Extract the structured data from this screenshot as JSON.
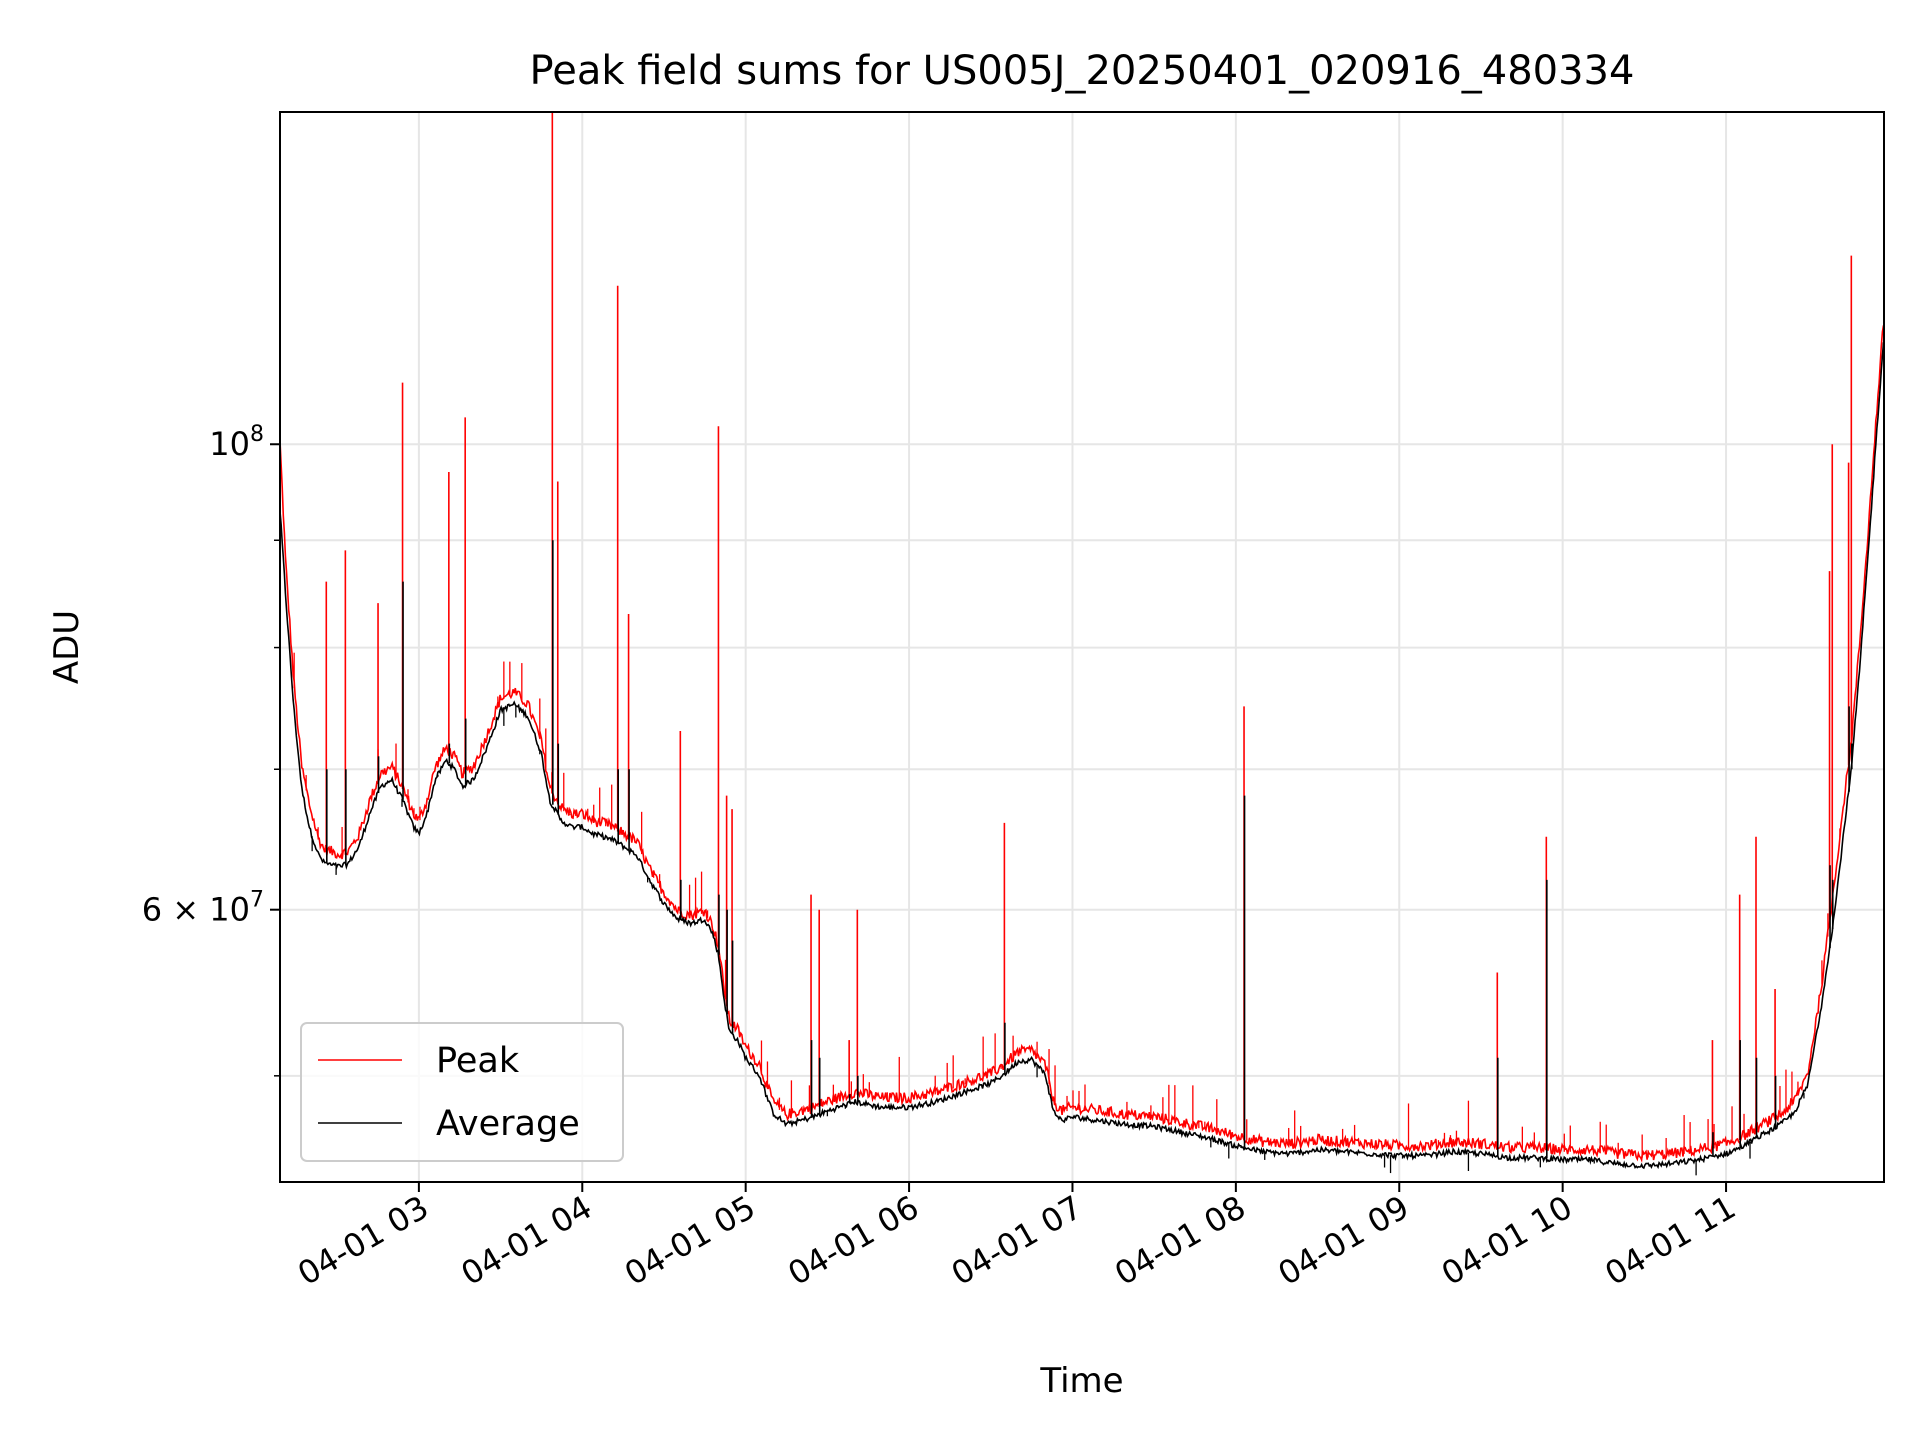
{
  "chart_data": {
    "type": "line",
    "title": "Peak field sums for US005J_20250401_020916_480334",
    "xlabel": "Time",
    "ylabel": "ADU",
    "y_scale": "log",
    "xlim": [
      "2025-04-01T02:09",
      "2025-04-01T11:58"
    ],
    "ylim": [
      44500000,
      144000000
    ],
    "grid": true,
    "legend_position": "lower-left",
    "x_ticks": [
      "04-01 03",
      "04-01 04",
      "04-01 05",
      "04-01 06",
      "04-01 07",
      "04-01 08",
      "04-01 09",
      "04-01 10",
      "04-01 11"
    ],
    "y_ticks": [
      "10^8",
      "6 × 10^7"
    ],
    "series_colors": {
      "Peak": "#ff0000",
      "Average": "#000000"
    },
    "series": [
      {
        "name": "Peak",
        "x": [
          "02:09",
          "02:11",
          "02:14",
          "02:17",
          "02:20",
          "02:23",
          "02:25",
          "02:28",
          "02:31",
          "02:34",
          "02:38",
          "02:42",
          "02:46",
          "02:50",
          "02:54",
          "02:58",
          "03:00",
          "03:03",
          "03:06",
          "03:10",
          "03:13",
          "03:16",
          "03:20",
          "03:25",
          "03:30",
          "03:35",
          "03:40",
          "03:45",
          "03:48",
          "03:52",
          "03:56",
          "04:00",
          "04:04",
          "04:08",
          "04:12",
          "04:16",
          "04:20",
          "04:25",
          "04:30",
          "04:35",
          "04:40",
          "04:45",
          "04:48",
          "04:50",
          "04:52",
          "04:54",
          "04:57",
          "05:00",
          "05:05",
          "05:10",
          "05:15",
          "05:20",
          "05:25",
          "05:30",
          "05:40",
          "05:50",
          "06:00",
          "06:10",
          "06:20",
          "06:30",
          "06:35",
          "06:40",
          "06:45",
          "06:50",
          "06:53",
          "06:56",
          "07:00",
          "07:10",
          "07:20",
          "07:30",
          "07:40",
          "07:50",
          "08:00",
          "08:10",
          "08:20",
          "08:30",
          "08:40",
          "08:50",
          "09:00",
          "09:10",
          "09:20",
          "09:30",
          "09:40",
          "09:50",
          "10:00",
          "10:10",
          "10:20",
          "10:30",
          "10:40",
          "10:50",
          "11:00",
          "11:05",
          "11:10",
          "11:15",
          "11:20",
          "11:25",
          "11:30",
          "11:35",
          "11:40",
          "11:43",
          "11:46",
          "11:49",
          "11:52",
          "11:55",
          "11:58"
        ],
        "y": [
          100000000,
          88000000,
          77000000,
          70000000,
          67000000,
          64800000,
          64000000,
          63800000,
          63600000,
          63800000,
          65000000,
          67500000,
          69500000,
          70000000,
          68500000,
          66500000,
          66000000,
          67500000,
          70000000,
          71500000,
          70800000,
          69500000,
          70000000,
          72500000,
          75500000,
          76000000,
          75000000,
          72000000,
          68500000,
          67000000,
          66500000,
          66500000,
          66000000,
          65800000,
          65500000,
          65000000,
          64500000,
          62500000,
          61000000,
          59800000,
          59500000,
          59800000,
          58800000,
          57500000,
          55000000,
          53000000,
          52500000,
          51500000,
          50500000,
          48500000,
          47800000,
          48000000,
          48200000,
          48500000,
          49000000,
          48700000,
          48700000,
          49000000,
          49500000,
          50000000,
          50500000,
          51200000,
          51300000,
          50500000,
          48500000,
          48000000,
          48200000,
          48000000,
          47800000,
          47700000,
          47400000,
          47100000,
          46700000,
          46400000,
          46300000,
          46500000,
          46400000,
          46300000,
          46200000,
          46200000,
          46400000,
          46300000,
          46100000,
          46100000,
          46000000,
          46000000,
          45800000,
          45700000,
          45800000,
          46000000,
          46300000,
          46600000,
          47000000,
          47400000,
          47800000,
          48500000,
          50000000,
          55000000,
          62000000,
          67000000,
          72000000,
          80000000,
          90000000,
          102000000,
          115000000
        ]
      },
      {
        "name": "Average",
        "x": [
          "02:09",
          "02:11",
          "02:14",
          "02:17",
          "02:20",
          "02:23",
          "02:25",
          "02:28",
          "02:31",
          "02:34",
          "02:38",
          "02:42",
          "02:46",
          "02:50",
          "02:54",
          "02:58",
          "03:00",
          "03:03",
          "03:06",
          "03:10",
          "03:13",
          "03:16",
          "03:20",
          "03:25",
          "03:30",
          "03:35",
          "03:40",
          "03:45",
          "03:48",
          "03:52",
          "03:56",
          "04:00",
          "04:04",
          "04:08",
          "04:12",
          "04:16",
          "04:20",
          "04:25",
          "04:30",
          "04:35",
          "04:40",
          "04:45",
          "04:48",
          "04:50",
          "04:52",
          "04:54",
          "04:57",
          "05:00",
          "05:05",
          "05:10",
          "05:15",
          "05:20",
          "05:25",
          "05:30",
          "05:40",
          "05:50",
          "06:00",
          "06:10",
          "06:20",
          "06:30",
          "06:35",
          "06:40",
          "06:45",
          "06:50",
          "06:53",
          "06:56",
          "07:00",
          "07:10",
          "07:20",
          "07:30",
          "07:40",
          "07:50",
          "08:00",
          "08:10",
          "08:20",
          "08:30",
          "08:40",
          "08:50",
          "09:00",
          "09:10",
          "09:20",
          "09:30",
          "09:40",
          "09:50",
          "10:00",
          "10:10",
          "10:20",
          "10:30",
          "10:40",
          "10:50",
          "11:00",
          "11:05",
          "11:10",
          "11:15",
          "11:20",
          "11:25",
          "11:30",
          "11:35",
          "11:40",
          "11:43",
          "11:46",
          "11:49",
          "11:52",
          "11:55",
          "11:58"
        ],
        "y": [
          93000000,
          85000000,
          75000000,
          68500000,
          65500000,
          63800000,
          63200000,
          63000000,
          62900000,
          63100000,
          64300000,
          66700000,
          68700000,
          69200000,
          67700000,
          65700000,
          65200000,
          66700000,
          69200000,
          70700000,
          70000000,
          68700000,
          69200000,
          71700000,
          74700000,
          75200000,
          74200000,
          71200000,
          67700000,
          66200000,
          65700000,
          65700000,
          65200000,
          65000000,
          64700000,
          64200000,
          63700000,
          61900000,
          60400000,
          59400000,
          59100000,
          59400000,
          58400000,
          57100000,
          54500000,
          52500000,
          52000000,
          51000000,
          50000000,
          48000000,
          47400000,
          47600000,
          47800000,
          48100000,
          48600000,
          48300000,
          48300000,
          48600000,
          49100000,
          49600000,
          50100000,
          50800000,
          50900000,
          50100000,
          48100000,
          47600000,
          47800000,
          47600000,
          47400000,
          47300000,
          47000000,
          46700000,
          46300000,
          46000000,
          45900000,
          46100000,
          46000000,
          45900000,
          45800000,
          45800000,
          46000000,
          45900000,
          45700000,
          45700000,
          45600000,
          45600000,
          45400000,
          45300000,
          45400000,
          45600000,
          45900000,
          46200000,
          46600000,
          47000000,
          47400000,
          48000000,
          49500000,
          54000000,
          60000000,
          65000000,
          70000000,
          78000000,
          88000000,
          100000000,
          113000000
        ]
      }
    ],
    "spikes": [
      {
        "x": "02:26",
        "peak": 86000000,
        "average": 70000000
      },
      {
        "x": "02:33",
        "peak": 89000000,
        "average": 70000000
      },
      {
        "x": "02:45",
        "peak": 84000000,
        "average": 71000000
      },
      {
        "x": "02:54",
        "peak": 107000000,
        "average": 86000000
      },
      {
        "x": "03:11",
        "peak": 97000000,
        "average": 72000000
      },
      {
        "x": "03:17",
        "peak": 103000000,
        "average": 74000000
      },
      {
        "x": "03:49",
        "peak": 144000000,
        "average": 90000000
      },
      {
        "x": "03:51",
        "peak": 96000000,
        "average": 72000000
      },
      {
        "x": "04:13",
        "peak": 119000000,
        "average": 70000000
      },
      {
        "x": "04:17",
        "peak": 83000000,
        "average": 70000000
      },
      {
        "x": "04:36",
        "peak": 73000000,
        "average": 62000000
      },
      {
        "x": "04:50",
        "peak": 102000000,
        "average": 61000000
      },
      {
        "x": "04:53",
        "peak": 68000000,
        "average": 60000000
      },
      {
        "x": "04:55",
        "peak": 67000000,
        "average": 58000000
      },
      {
        "x": "05:24",
        "peak": 61000000,
        "average": 52000000
      },
      {
        "x": "05:27",
        "peak": 60000000,
        "average": 51000000
      },
      {
        "x": "05:38",
        "peak": 52000000,
        "average": 49000000
      },
      {
        "x": "05:41",
        "peak": 60000000,
        "average": 50000000
      },
      {
        "x": "06:35",
        "peak": 66000000,
        "average": 53000000
      },
      {
        "x": "08:03",
        "peak": 75000000,
        "average": 68000000
      },
      {
        "x": "09:36",
        "peak": 56000000,
        "average": 51000000
      },
      {
        "x": "09:54",
        "peak": 65000000,
        "average": 62000000
      },
      {
        "x": "10:55",
        "peak": 52000000,
        "average": 47000000
      },
      {
        "x": "11:05",
        "peak": 61000000,
        "average": 52000000
      },
      {
        "x": "11:11",
        "peak": 65000000,
        "average": 51000000
      },
      {
        "x": "11:18",
        "peak": 55000000,
        "average": 50000000
      },
      {
        "x": "11:38",
        "peak": 87000000,
        "average": 63000000
      },
      {
        "x": "11:39",
        "peak": 100000000,
        "average": 62000000
      },
      {
        "x": "11:45",
        "peak": 98000000,
        "average": 75000000
      },
      {
        "x": "11:46",
        "peak": 123000000,
        "average": 72000000
      }
    ]
  }
}
